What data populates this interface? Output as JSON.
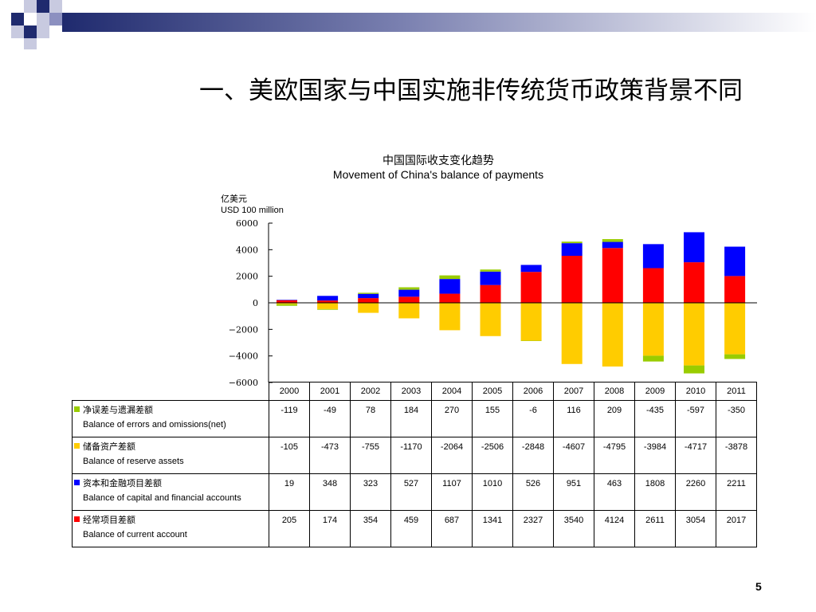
{
  "slide": {
    "title": "一、美欧国家与中国实施非传统货币政策背景不同",
    "page_number": "5"
  },
  "chart_data": {
    "type": "bar",
    "stacked": true,
    "title": "中国国际收支变化趋势",
    "subtitle": "Movement of China's balance of payments",
    "unit_cn": "亿美元",
    "unit_en": "USD 100 million",
    "ylim": [
      -6000,
      6000
    ],
    "yticks": [
      6000,
      4000,
      2000,
      0,
      -2000,
      -4000,
      -6000
    ],
    "ytick_labels": [
      "6000",
      "4000",
      "2000",
      "0",
      "−2000",
      "−4000",
      "−6000"
    ],
    "categories": [
      "2000",
      "2001",
      "2002",
      "2003",
      "2004",
      "2005",
      "2006",
      "2007",
      "2008",
      "2009",
      "2010",
      "2011"
    ],
    "series": [
      {
        "name_cn": "净误差与遗漏差额",
        "name_en": "Balance of errors and omissions(net)",
        "color": "#99cc00",
        "values": [
          -119,
          -49,
          78,
          184,
          270,
          155,
          -6,
          116,
          209,
          -435,
          -597,
          -350
        ],
        "labels": [
          "-119",
          "-49",
          "78",
          "184",
          "270",
          "155",
          "-6",
          "116",
          "209",
          "-435",
          "-597",
          "-350"
        ]
      },
      {
        "name_cn": "储备资产差额",
        "name_en": "Balance of reserve assets",
        "color": "#ffcc00",
        "values": [
          -105,
          -473,
          -755,
          -1170,
          -2064,
          -2506,
          -2848,
          -4607,
          -4795,
          -3984,
          -4717,
          -3878
        ],
        "labels": [
          "-105",
          "-473",
          "-755",
          "-1170",
          "-2064",
          "-2506",
          "-2848",
          "-4607",
          "-4795",
          "-3984",
          "-4717",
          "-3878"
        ]
      },
      {
        "name_cn": "资本和金融项目差额",
        "name_en": "Balance of capital and financial accounts",
        "color": "#0000ff",
        "values": [
          19,
          348,
          323,
          527,
          1107,
          1010,
          526,
          951,
          463,
          1808,
          2260,
          2211
        ],
        "labels": [
          "19",
          "348",
          "323",
          "527",
          "1107",
          "1010",
          "526",
          "951",
          "463",
          "1808",
          "2260",
          "2211"
        ]
      },
      {
        "name_cn": "经常项目差额",
        "name_en": "Balance of current account",
        "color": "#ff0000",
        "values": [
          205,
          174,
          354,
          459,
          687,
          1341,
          2327,
          3540,
          4124,
          2611,
          3054,
          2017
        ],
        "labels": [
          "205",
          "174",
          "354",
          "459",
          "687",
          "1341",
          "2327",
          "3540",
          "4124",
          "2611",
          "3054",
          "2017"
        ]
      }
    ],
    "table_row_order": [
      0,
      1,
      2,
      3
    ],
    "stack_order": [
      3,
      2,
      0
    ]
  }
}
